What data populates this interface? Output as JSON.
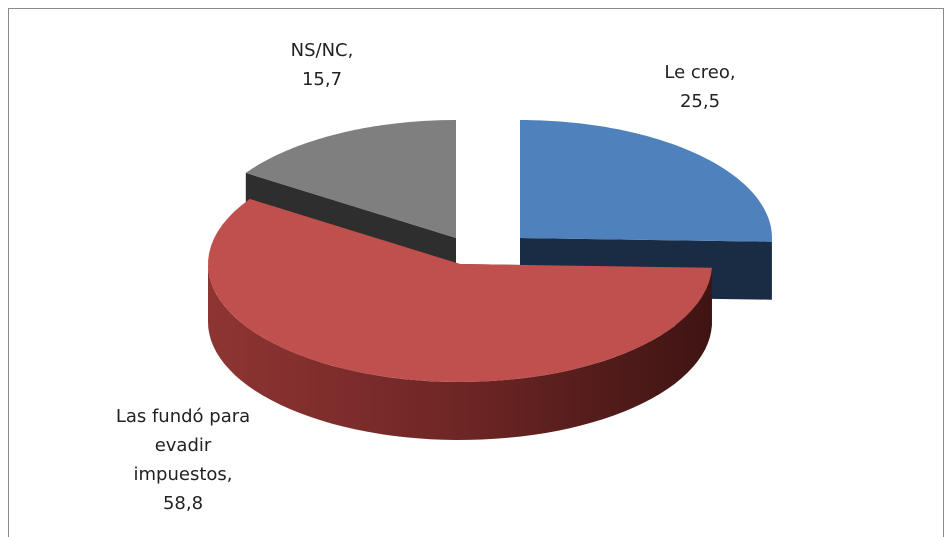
{
  "chart_data": {
    "type": "pie3d",
    "categories": [
      "Le creo,",
      "Las fundó para evadir impuestos,",
      "NS/NC,"
    ],
    "values": [
      25.5,
      58.8,
      15.7
    ],
    "value_labels": [
      "25,5",
      "58,8",
      "15,7"
    ],
    "colors": [
      "#4f81bd",
      "#c0504d",
      "#7f7f7f"
    ]
  }
}
